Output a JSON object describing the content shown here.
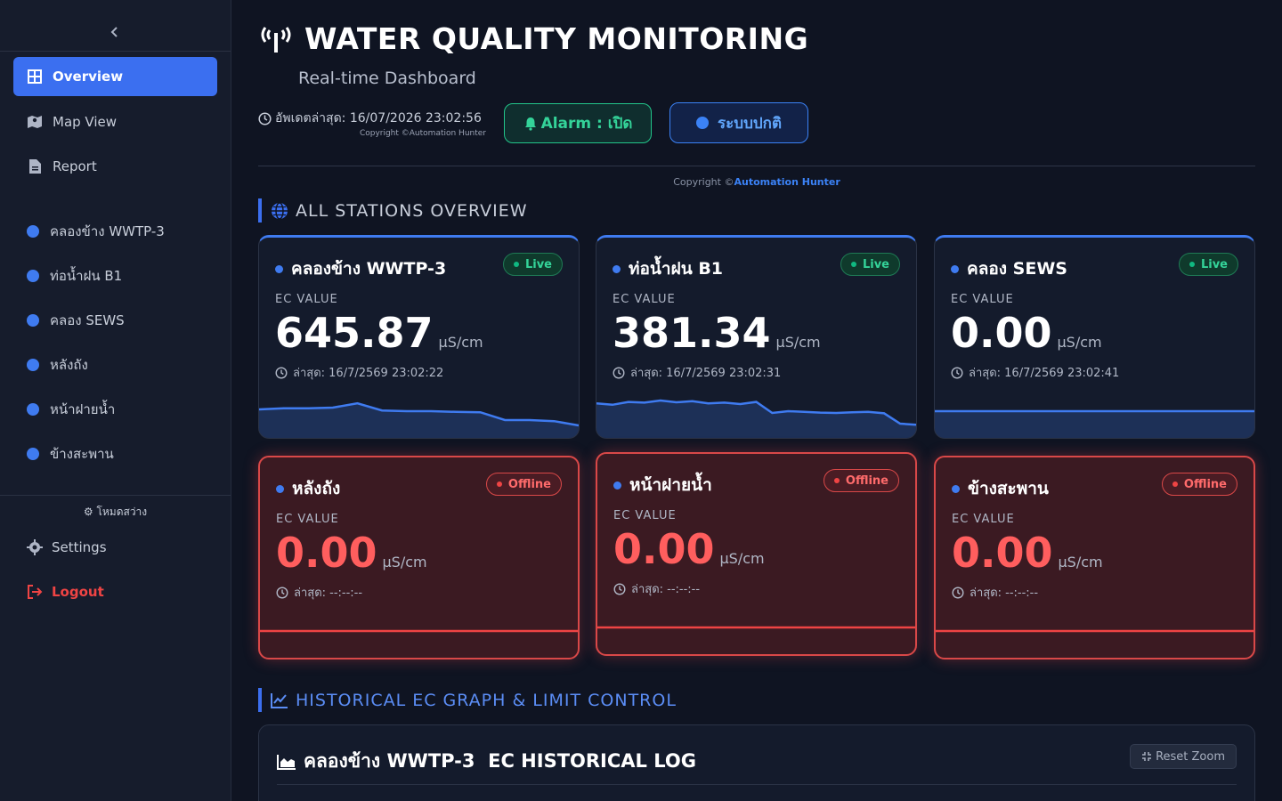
{
  "sidebar": {
    "collapse_icon": "chevron-left-icon",
    "nav": [
      {
        "label": "Overview",
        "icon": "grid-icon",
        "active": true
      },
      {
        "label": "Map View",
        "icon": "map-icon",
        "active": false
      },
      {
        "label": "Report",
        "icon": "file-icon",
        "active": false
      }
    ],
    "stations": [
      "คลองข้าง WWTP-3",
      "ท่อน้ำฝน B1",
      "คลอง SEWS",
      "หลังถัง",
      "หน้าฝายน้ำ",
      "ข้างสะพาน"
    ],
    "theme_toggle": "โหมดสว่าง",
    "settings_label": "Settings",
    "logout_label": "Logout"
  },
  "header": {
    "title": "WATER QUALITY MONITORING",
    "subtitle": "Real-time Dashboard",
    "update_label": "อัพเดตล่าสุด: 16/07/2026 23:02:56",
    "copyright_small": "Copyright ©Automation Hunter",
    "alarm_label": "Alarm : เปิด",
    "status_label": "ระบบปกติ",
    "copyright_prefix": "Copyright ©",
    "copyright_brand": "Automation Hunter"
  },
  "sections": {
    "overview": "ALL STATIONS OVERVIEW",
    "history": "HISTORICAL EC GRAPH & LIMIT CONTROL"
  },
  "cards": [
    {
      "name": "คลองข้าง WWTP-3",
      "status": "Live",
      "ec_label": "EC VALUE",
      "value": "645.87",
      "unit": "µS/cm",
      "ts": "ล่าสุด: 16/7/2569 23:02:22",
      "spark": [
        0.55,
        0.58,
        0.58,
        0.6,
        0.72,
        0.52,
        0.5,
        0.5,
        0.48,
        0.47,
        0.25,
        0.25,
        0.22,
        0.1
      ]
    },
    {
      "name": "ท่อน้ำฝน B1",
      "status": "Live",
      "ec_label": "EC VALUE",
      "value": "381.34",
      "unit": "µS/cm",
      "ts": "ล่าสุด: 16/7/2569 23:02:31",
      "spark": [
        0.72,
        0.68,
        0.76,
        0.74,
        0.8,
        0.75,
        0.78,
        0.72,
        0.74,
        0.7,
        0.76,
        0.45,
        0.5,
        0.48,
        0.46,
        0.45,
        0.47,
        0.48,
        0.44,
        0.15,
        0.12
      ]
    },
    {
      "name": "คลอง SEWS",
      "status": "Live",
      "ec_label": "EC VALUE",
      "value": "0.00",
      "unit": "µS/cm",
      "ts": "ล่าสุด: 16/7/2569 23:02:41",
      "spark": [
        0.5,
        0.5
      ]
    },
    {
      "name": "หลังถัง",
      "status": "Offline",
      "ec_label": "EC VALUE",
      "value": "0.00",
      "unit": "µS/cm",
      "ts": "ล่าสุด: --:--:--",
      "spark": [
        0.5,
        0.5
      ]
    },
    {
      "name": "หน้าฝายน้ำ",
      "status": "Offline",
      "ec_label": "EC VALUE",
      "value": "0.00",
      "unit": "µS/cm",
      "ts": "ล่าสุด: --:--:--",
      "spark": [
        0.5,
        0.5
      ]
    },
    {
      "name": "ข้างสะพาน",
      "status": "Offline",
      "ec_label": "EC VALUE",
      "value": "0.00",
      "unit": "µS/cm",
      "ts": "ล่าสุด: --:--:--",
      "spark": [
        0.5,
        0.5
      ]
    }
  ],
  "history": {
    "title": "คลองข้าง WWTP-3  EC HISTORICAL LOG",
    "reset_label": "Reset Zoom"
  },
  "colors": {
    "accent": "#3b6ff0",
    "live": "#34d399",
    "offline": "#ef4444",
    "background": "#0f1422"
  }
}
